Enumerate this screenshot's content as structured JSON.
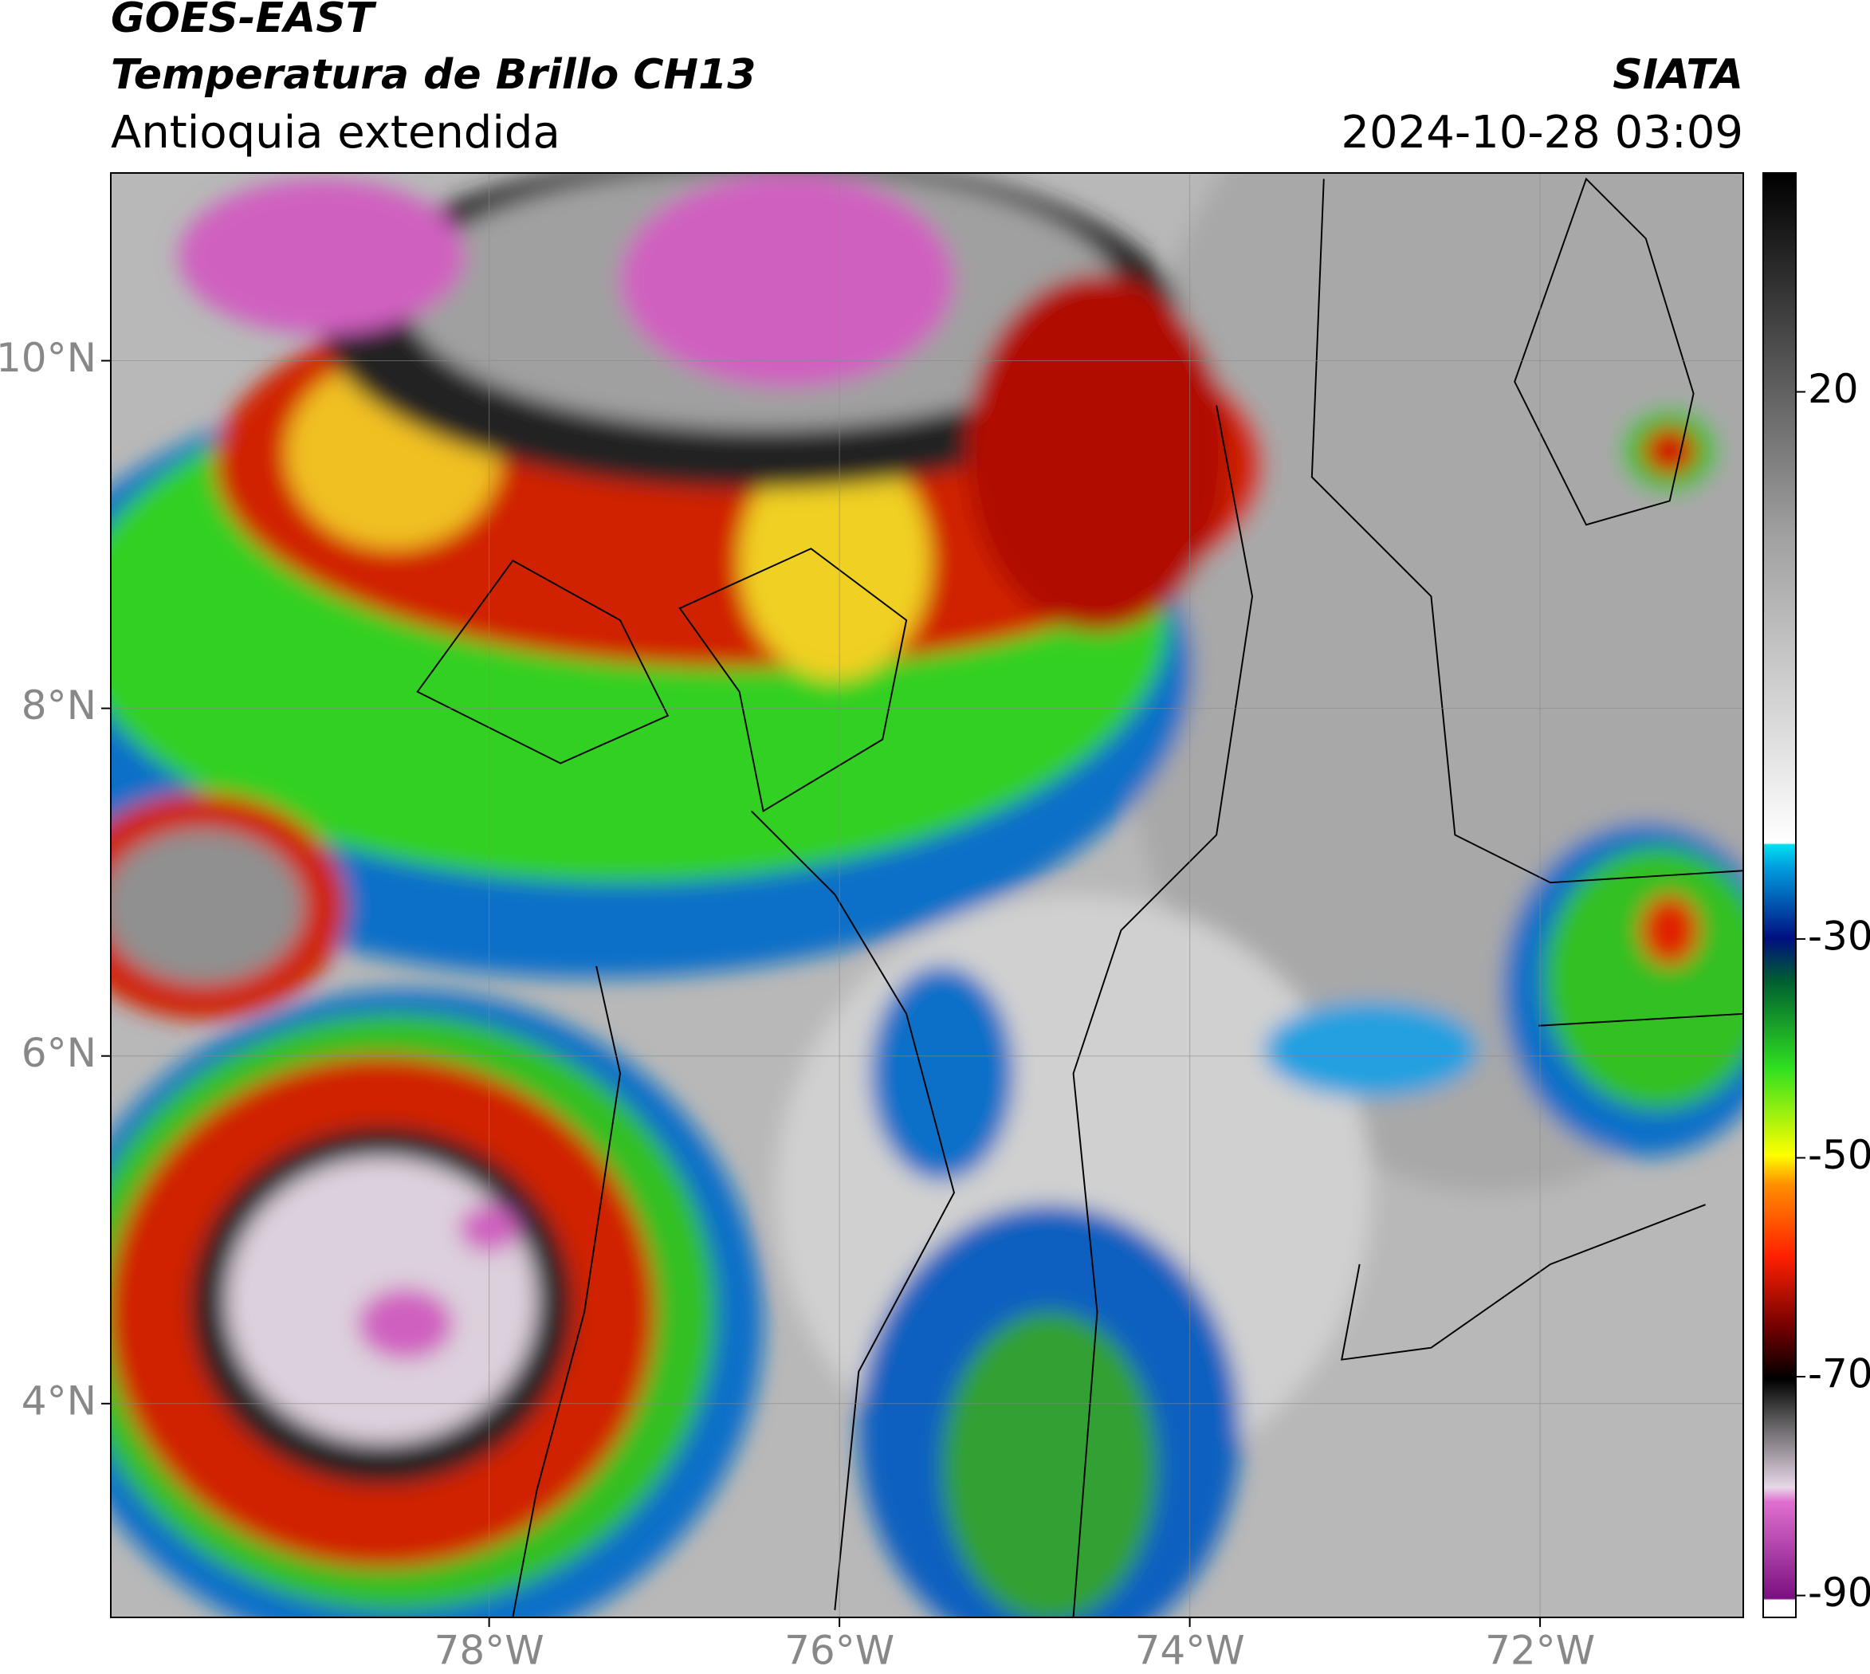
{
  "header": {
    "satellite": "GOES-EAST",
    "product": "Temperatura de Brillo CH13",
    "region": "Antioquia extendida",
    "agency": "SIATA",
    "datetime": "2024-10-28 03:09"
  },
  "chart_data": {
    "type": "map",
    "xlim": [
      -80.16,
      -70.84
    ],
    "ylim": [
      2.77,
      11.08
    ],
    "xticks": [
      {
        "value": -78,
        "label": "78°W"
      },
      {
        "value": -76,
        "label": "76°W"
      },
      {
        "value": -74,
        "label": "74°W"
      },
      {
        "value": -72,
        "label": "72°W"
      }
    ],
    "yticks": [
      {
        "value": 4,
        "label": "4°N"
      },
      {
        "value": 6,
        "label": "6°N"
      },
      {
        "value": 8,
        "label": "8°N"
      },
      {
        "value": 10,
        "label": "10°N"
      }
    ],
    "grid": true,
    "colorbar": {
      "lim": [
        -92,
        40
      ],
      "ticks": [
        20,
        -30,
        -50,
        -70,
        -90
      ]
    }
  }
}
